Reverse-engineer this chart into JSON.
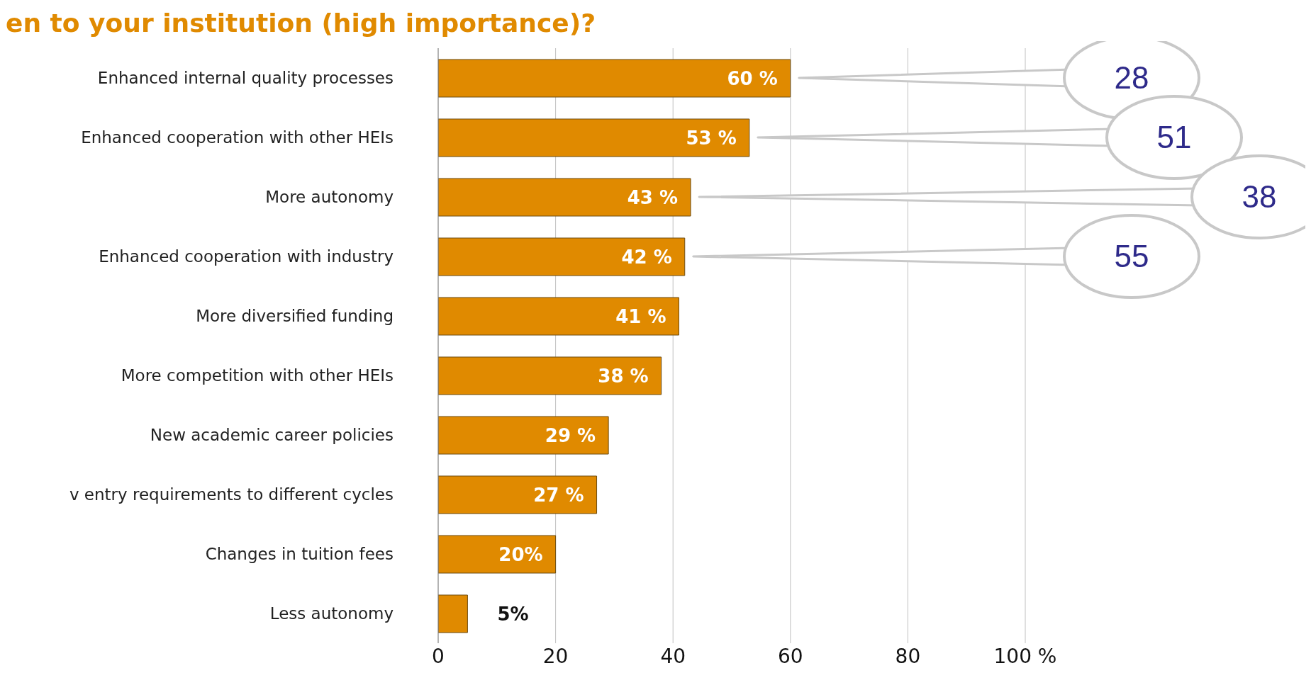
{
  "chart_data": {
    "type": "bar",
    "orientation": "horizontal",
    "title": "en to your institution (high importance)?",
    "categories": [
      "Enhanced internal quality processes",
      "Enhanced cooperation with other HEIs",
      "More autonomy",
      "Enhanced cooperation with industry",
      "More diversified funding",
      "More competition with other HEIs",
      "New academic career policies",
      "v entry requirements to different cycles",
      "Changes in tuition fees",
      "Less autonomy"
    ],
    "values": [
      60,
      53,
      43,
      42,
      41,
      38,
      29,
      27,
      20,
      5
    ],
    "value_labels": [
      "60 %",
      "53 %",
      "43 %",
      "42 %",
      "41 %",
      "38 %",
      "29 %",
      "27 %",
      "20%",
      "5%"
    ],
    "color": "#e08a00",
    "xlim": [
      0,
      100
    ],
    "xticks": [
      0,
      20,
      40,
      60,
      80,
      {
        "value": 100,
        "label": "100 %"
      }
    ],
    "grid": "x",
    "annotations": [
      "28",
      "51",
      "38",
      "55"
    ]
  }
}
